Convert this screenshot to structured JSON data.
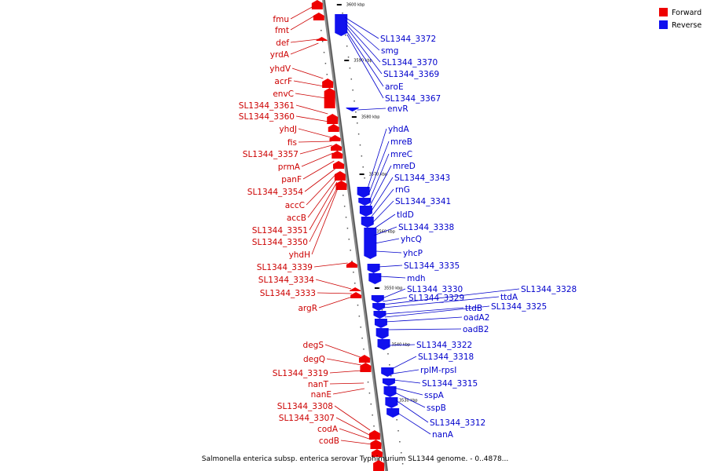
{
  "legend": {
    "forward_label": "Forward",
    "reverse_label": "Reverse",
    "forward_color": "#ee0000",
    "reverse_color": "#1111ee"
  },
  "caption": "Salmonella enterica subsp. enterica serovar Typhimurium SL1344 genome. - 0..4878...",
  "ticks": [
    "3600 kbp",
    "3590 kbp",
    "3580 kbp",
    "3570 kbp",
    "3560 kbp",
    "3550 kbp",
    "3540 kbp",
    "3530 kbp"
  ],
  "forward_genes": [
    "fmu",
    "fmt",
    "def",
    "yrdA",
    "yhdV",
    "acrF",
    "envC",
    "SL1344_3361",
    "SL1344_3360",
    "yhdJ",
    "fis",
    "SL1344_3357",
    "prmA",
    "panF",
    "SL1344_3354",
    "accC",
    "accB",
    "SL1344_3351",
    "SL1344_3350",
    "yhdH",
    "SL1344_3339",
    "SL1344_3334",
    "SL1344_3333",
    "argR",
    "degS",
    "degQ",
    "SL1344_3319",
    "nanT",
    "nanE",
    "SL1344_3308",
    "SL1344_3307",
    "codA",
    "codB"
  ],
  "reverse_genes": [
    "SL1344_3372",
    "smg",
    "SL1344_3370",
    "SL1344_3369",
    "aroE",
    "SL1344_3367",
    "envR",
    "yhdA",
    "mreB",
    "mreC",
    "mreD",
    "SL1344_3343",
    "rnG",
    "SL1344_3341",
    "tldD",
    "SL1344_3338",
    "yhcQ",
    "yhcP",
    "SL1344_3335",
    "mdh",
    "SL1344_3330",
    "SL1344_3329",
    "SL1344_3328",
    "ttdA",
    "ttdB",
    "SL1344_3325",
    "oadA2",
    "oadB2",
    "SL1344_3322",
    "SL1344_3318",
    "rplM-rpsI",
    "SL1344_3315",
    "sspA",
    "sspB",
    "SL1344_3312",
    "nanA"
  ]
}
